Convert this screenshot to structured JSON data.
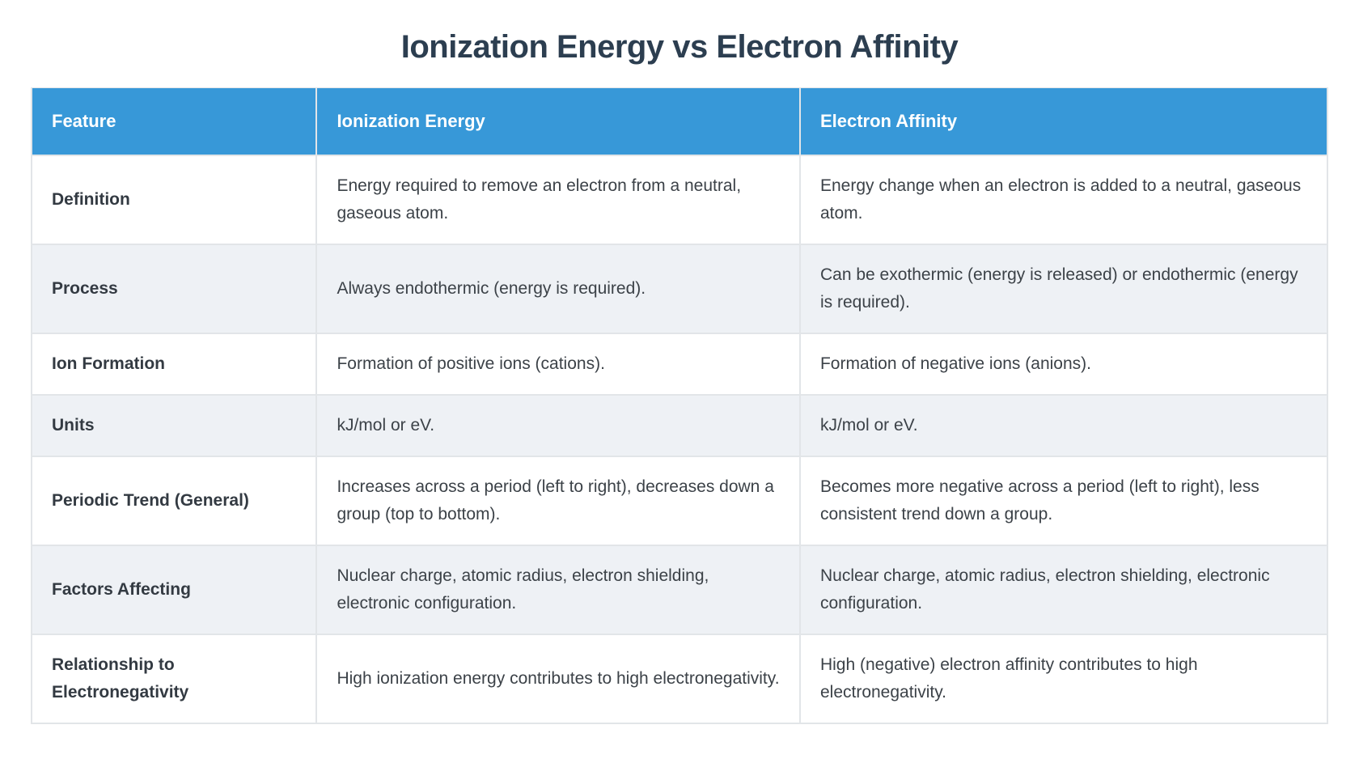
{
  "page": {
    "title": "Ionization Energy vs Electron Affinity"
  },
  "table": {
    "columns": [
      {
        "label": "Feature"
      },
      {
        "label": "Ionization Energy"
      },
      {
        "label": "Electron Affinity"
      }
    ],
    "rows": [
      {
        "feature": "Definition",
        "ionization_energy": "Energy required to remove an electron from a neutral, gaseous atom.",
        "electron_affinity": "Energy change when an electron is added to a neutral, gaseous atom."
      },
      {
        "feature": "Process",
        "ionization_energy": "Always endothermic (energy is required).",
        "electron_affinity": "Can be exothermic (energy is released) or endothermic (energy is required)."
      },
      {
        "feature": "Ion Formation",
        "ionization_energy": "Formation of positive ions (cations).",
        "electron_affinity": "Formation of negative ions (anions)."
      },
      {
        "feature": "Units",
        "ionization_energy": "kJ/mol or eV.",
        "electron_affinity": "kJ/mol or eV."
      },
      {
        "feature": "Periodic Trend (General)",
        "ionization_energy": "Increases across a period (left to right), decreases down a group (top to bottom).",
        "electron_affinity": "Becomes more negative across a period (left to right), less consistent trend down a group."
      },
      {
        "feature": "Factors Affecting",
        "ionization_energy": "Nuclear charge, atomic radius, electron shielding, electronic configuration.",
        "electron_affinity": "Nuclear charge, atomic radius, electron shielding, electronic configuration."
      },
      {
        "feature": "Relationship to Electronegativity",
        "ionization_energy": "High ionization energy contributes to high electronegativity.",
        "electron_affinity": "High (negative) electron affinity contributes to high electronegativity."
      }
    ]
  },
  "colors": {
    "header_bg": "#3798d8",
    "header_text": "#ffffff",
    "title_text": "#2c3e50",
    "label_text": "#333a42",
    "body_text": "#3c4248",
    "row_alt_bg": "#eef1f5",
    "row_bg": "#ffffff",
    "border": "#e2e5e8",
    "page_bg": "#ffffff"
  }
}
